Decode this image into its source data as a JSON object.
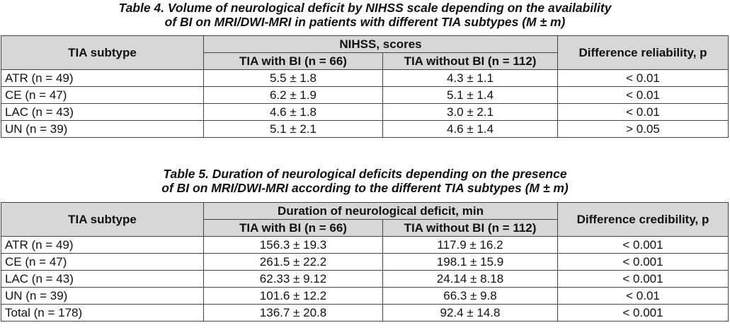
{
  "table4": {
    "caption_line1": "Table 4. Volume of neurological deficit by NIHSS scale depending on the availability",
    "caption_line2": "of BI on MRI/DWI-MRI in patients with different TIA subtypes (M ± m)",
    "headers": {
      "subtype": "TIA subtype",
      "group": "NIHSS, scores",
      "with_bi": "TIA with BI (n = 66)",
      "without_bi": "TIA without BI (n = 112)",
      "p": "Difference reliability, p"
    },
    "rows": [
      {
        "subtype": "ATR (n = 49)",
        "with_bi": "5.5 ± 1.8",
        "without_bi": "4.3 ± 1.1",
        "p": "< 0.01"
      },
      {
        "subtype": "CE (n = 47)",
        "with_bi": "6.2 ± 1.9",
        "without_bi": "5.1 ± 1.4",
        "p": "< 0.01"
      },
      {
        "subtype": "LAC (n = 43)",
        "with_bi": "4.6 ± 1.8",
        "without_bi": "3.0 ± 2.1",
        "p": "< 0.01"
      },
      {
        "subtype": "UN (n = 39)",
        "with_bi": "5.1 ± 2.1",
        "without_bi": "4.6 ± 1.4",
        "p": "> 0.05"
      }
    ]
  },
  "table5": {
    "caption_line1": "Table 5. Duration of neurological deficits depending on the presence",
    "caption_line2": "of BI on MRI/DWI-MRI according to the different TIA subtypes (M ± m)",
    "headers": {
      "subtype": "TIA subtype",
      "group": "Duration of neurological deficit, min",
      "with_bi": "TIA with BI (n = 66)",
      "without_bi": "TIA without BI (n = 112)",
      "p": "Difference credibility, p"
    },
    "rows": [
      {
        "subtype": "ATR (n = 49)",
        "with_bi": "156.3 ± 19.3",
        "without_bi": "117.9 ± 16.2",
        "p": "< 0.001"
      },
      {
        "subtype": "CE (n = 47)",
        "with_bi": "261.5 ± 22.2",
        "without_bi": "198.1 ± 15.9",
        "p": "< 0.001"
      },
      {
        "subtype": "LAC (n = 43)",
        "with_bi": "62.33 ± 9.12",
        "without_bi": "24.14 ± 8.18",
        "p": "< 0.001"
      },
      {
        "subtype": "UN (n = 39)",
        "with_bi": "101.6 ± 12.2",
        "without_bi": "66.3 ± 9.8",
        "p": "< 0.01"
      },
      {
        "subtype": "Total (n = 178)",
        "with_bi": "136.7 ± 20.8",
        "without_bi": "92.4 ± 14.8",
        "p": "< 0.001"
      }
    ]
  }
}
